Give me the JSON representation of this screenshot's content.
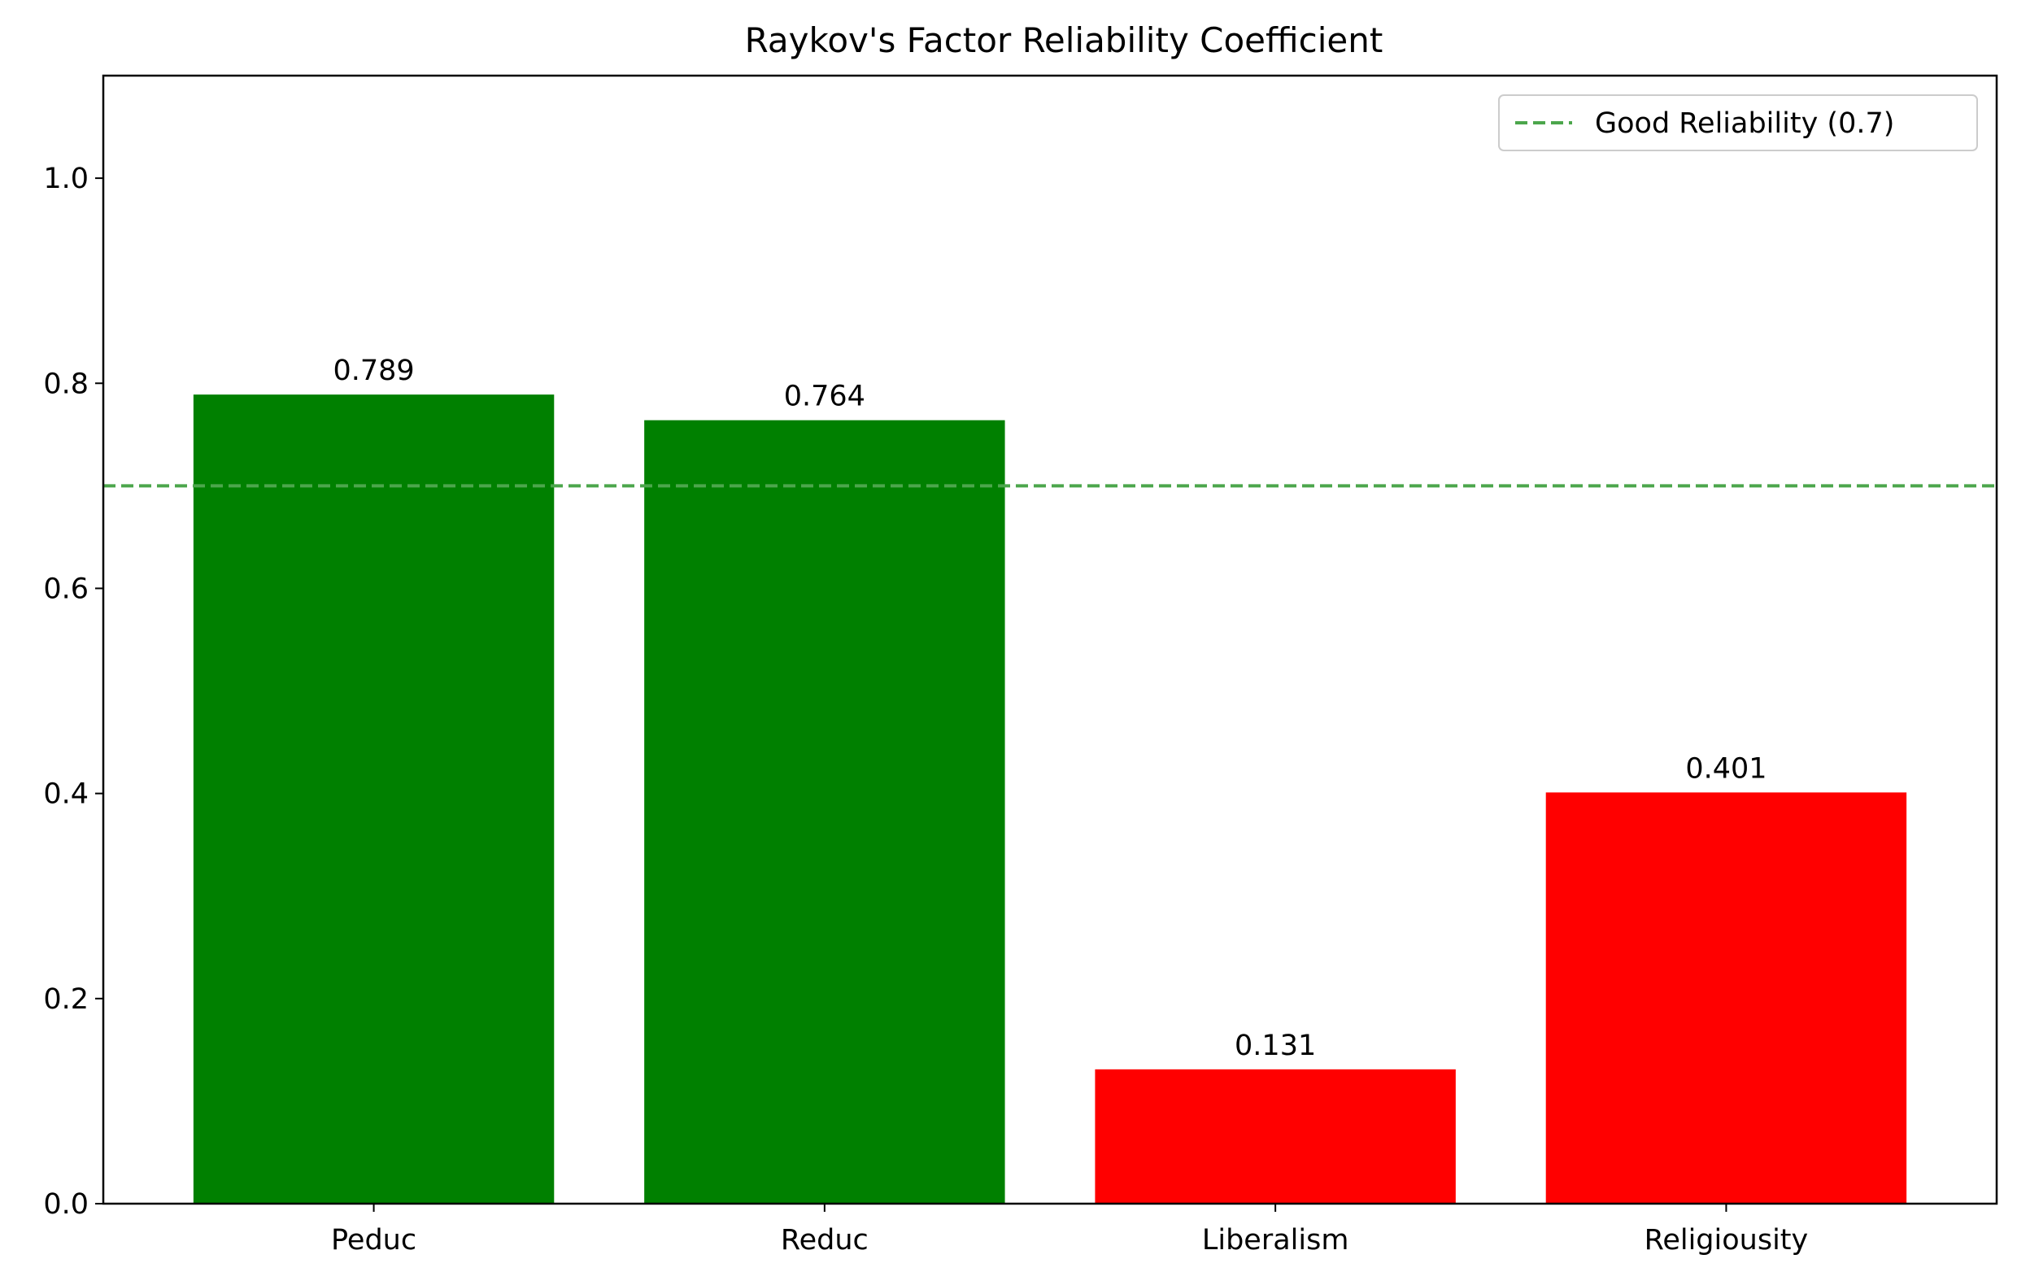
{
  "chart_data": {
    "type": "bar",
    "title": "Raykov's Factor Reliability Coefficient",
    "xlabel": "",
    "ylabel": "",
    "categories": [
      "Peduc",
      "Reduc",
      "Liberalism",
      "Religiousity"
    ],
    "values": [
      0.789,
      0.764,
      0.131,
      0.401
    ],
    "value_labels": [
      "0.789",
      "0.764",
      "0.131",
      "0.401"
    ],
    "bar_colors": [
      "#008000",
      "#008000",
      "#ff0000",
      "#ff0000"
    ],
    "ylim": [
      0,
      1.1
    ],
    "yticks": [
      0.0,
      0.2,
      0.4,
      0.6,
      0.8,
      1.0
    ],
    "ytick_labels": [
      "0.0",
      "0.2",
      "0.4",
      "0.6",
      "0.8",
      "1.0"
    ],
    "grid": false,
    "reference_line": {
      "value": 0.7,
      "style": "dashed",
      "color": "#4ca64c",
      "label": "Good Reliability (0.7)"
    },
    "legend": {
      "position": "top-right",
      "entries": [
        "Good Reliability (0.7)"
      ]
    }
  }
}
